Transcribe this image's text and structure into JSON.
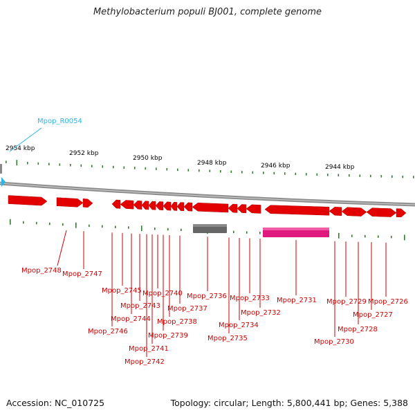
{
  "header": {
    "title": "Methylobacterium populi BJ001, complete genome"
  },
  "footer": {
    "accession": "Accession: NC_010725",
    "summary": "Topology: circular; Length: 5,800,441 bp; Genes: 5,388"
  },
  "colors": {
    "gene": "#e30000",
    "rna": "#2bb6e6",
    "gray_feature": "#666666",
    "magenta_feature": "#e0197f",
    "backbone": "#8c8c8c",
    "tick": "#2e7d2e",
    "label_text": "#cc0000",
    "axis_text": "#000000"
  },
  "axis": {
    "unit": "kbp",
    "labels": [
      "2954 kbp",
      "2952 kbp",
      "2950 kbp",
      "2948 kbp",
      "2946 kbp",
      "2944 kbp"
    ]
  },
  "rna_labels": [
    "Mpop_R0054"
  ],
  "gene_labels": [
    "Mpop_2748",
    "Mpop_2747",
    "Mpop_2746",
    "Mpop_2745",
    "Mpop_2744",
    "Mpop_2743",
    "Mpop_2742",
    "Mpop_2741",
    "Mpop_2740",
    "Mpop_2739",
    "Mpop_2738",
    "Mpop_2737",
    "Mpop_2736",
    "Mpop_2735",
    "Mpop_2734",
    "Mpop_2733",
    "Mpop_2732",
    "Mpop_2731",
    "Mpop_2730",
    "Mpop_2729",
    "Mpop_2728",
    "Mpop_2727",
    "Mpop_2726"
  ]
}
